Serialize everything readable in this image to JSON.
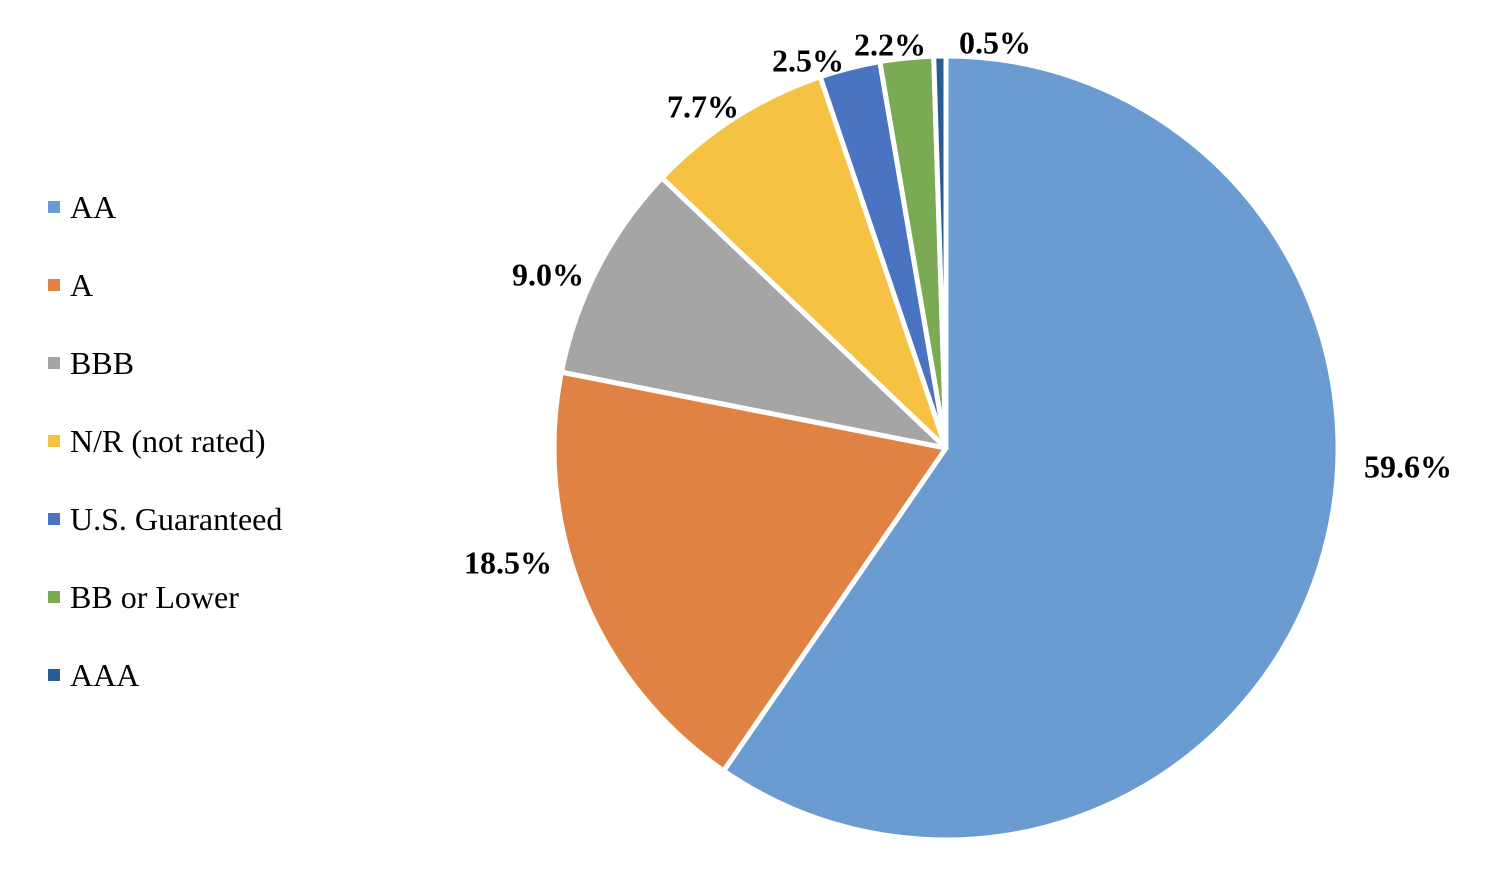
{
  "chart_data": {
    "type": "pie",
    "title": "",
    "legend_position": "left",
    "slices": [
      {
        "name": "AA",
        "value": 59.6,
        "label": "59.6%",
        "color": "#6A9BD1"
      },
      {
        "name": "A",
        "value": 18.5,
        "label": "18.5%",
        "color": "#E08244"
      },
      {
        "name": "BBB",
        "value": 9.0,
        "label": "9.0%",
        "color": "#A5A5A5"
      },
      {
        "name": "N/R (not rated)",
        "value": 7.7,
        "label": "7.7%",
        "color": "#F5C244"
      },
      {
        "name": "U.S. Guaranteed",
        "value": 2.5,
        "label": "2.5%",
        "color": "#4A73C1"
      },
      {
        "name": "BB or Lower",
        "value": 2.2,
        "label": "2.2%",
        "color": "#7BAA55"
      },
      {
        "name": "AAA",
        "value": 0.5,
        "label": "0.5%",
        "color": "#295B94"
      }
    ]
  }
}
